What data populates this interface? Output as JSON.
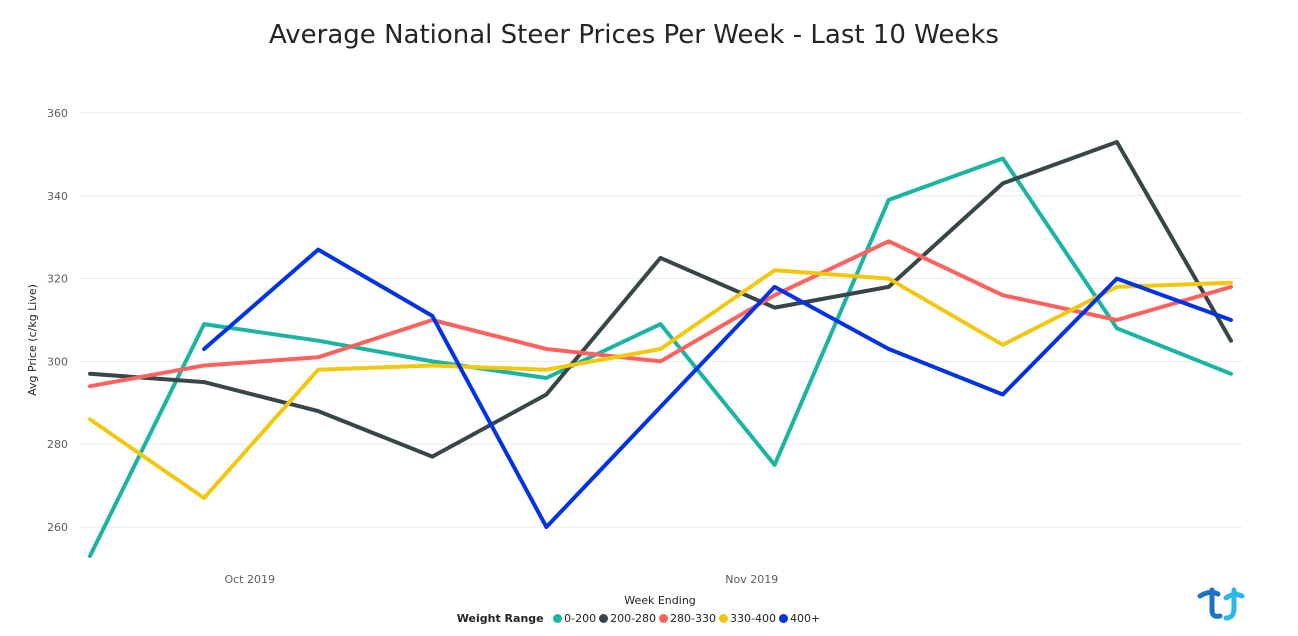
{
  "chart_data": {
    "type": "line",
    "title": "Average National Steer Prices Per Week - Last 10 Weeks",
    "xlabel": "Week Ending",
    "ylabel": "Avg Price (c/kg Live)",
    "ylim": [
      252,
      362
    ],
    "yticks": [
      260,
      280,
      300,
      320,
      340,
      360
    ],
    "grid": true,
    "x": [
      1,
      2,
      3,
      4,
      5,
      6,
      7,
      8,
      9,
      10,
      11
    ],
    "xlim": [
      1,
      11
    ],
    "xtick_labels": [
      {
        "x": 2.4,
        "label": "Oct 2019"
      },
      {
        "x": 6.8,
        "label": "Nov 2019"
      }
    ],
    "legend_title": "Weight Range",
    "legend_position": "bottom-center",
    "series": [
      {
        "name": "0-200",
        "color": "#1AB5A2",
        "values": [
          253,
          309,
          305,
          300,
          296,
          309,
          275,
          339,
          349,
          308,
          297
        ]
      },
      {
        "name": "200-280",
        "color": "#374649",
        "values": [
          297,
          295,
          288,
          277,
          292,
          325,
          313,
          318,
          343,
          353,
          305
        ]
      },
      {
        "name": "280-330",
        "color": "#FD625E",
        "values": [
          294,
          299,
          301,
          310,
          303,
          300,
          316,
          329,
          316,
          310,
          318
        ]
      },
      {
        "name": "330-400",
        "color": "#F2C80F",
        "values": [
          286,
          267,
          298,
          299,
          298,
          303,
          322,
          320,
          304,
          318,
          319
        ]
      },
      {
        "name": "400+",
        "color": "#0033E8",
        "values": [
          null,
          303,
          327,
          311,
          260,
          289,
          318,
          303,
          292,
          320,
          310
        ]
      }
    ]
  }
}
